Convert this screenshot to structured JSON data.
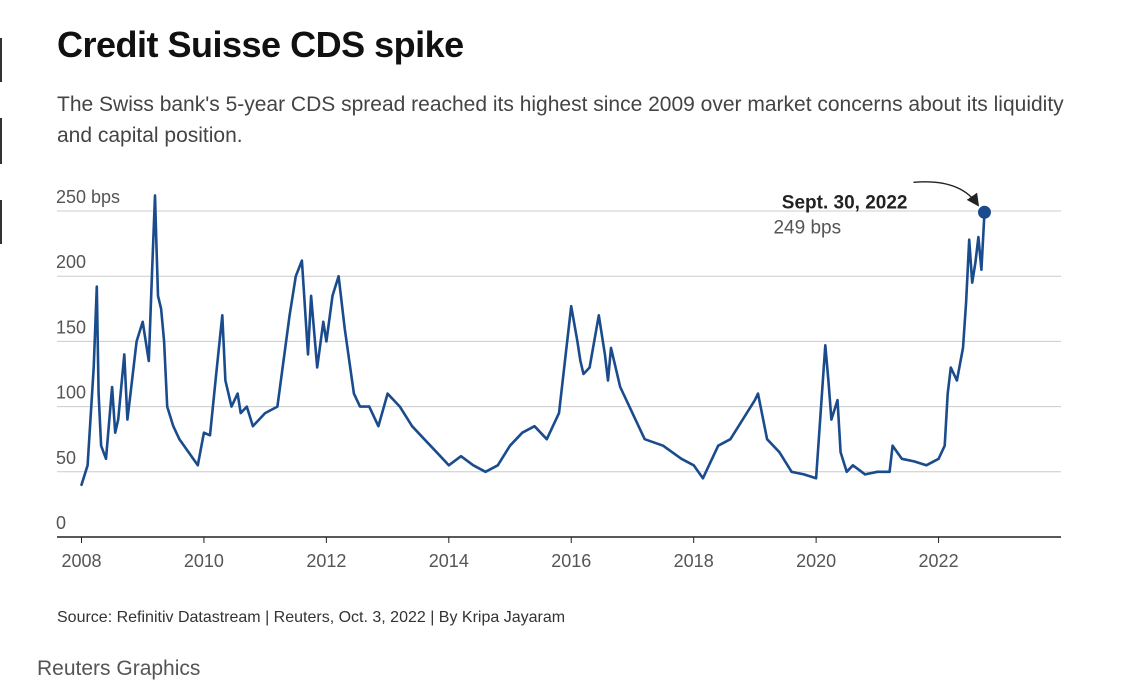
{
  "header": {
    "title": "Credit Suisse CDS spike",
    "subtitle": "The Swiss bank's 5-year CDS spread reached its highest since 2009 over market concerns about its liquidity and capital position."
  },
  "footer": {
    "source": "Source: Refinitiv Datastream | Reuters, Oct. 3, 2022 | By Kripa Jayaram",
    "brand": "Reuters Graphics"
  },
  "colors": {
    "line": "#1a4b8c",
    "grid": "#cccccc",
    "axis": "#222222"
  },
  "chart_data": {
    "type": "line",
    "title": "Credit Suisse CDS spike",
    "xlabel": "",
    "ylabel": "",
    "xlim": [
      2007.6,
      2024.0
    ],
    "ylim": [
      0,
      250
    ],
    "x_ticks": [
      2008,
      2010,
      2012,
      2014,
      2016,
      2018,
      2020,
      2022
    ],
    "x_tick_labels": [
      "2008",
      "2010",
      "2012",
      "2014",
      "2016",
      "2018",
      "2020",
      "2022"
    ],
    "y_ticks": [
      0,
      50,
      100,
      150,
      200,
      250
    ],
    "y_tick_labels": [
      "0",
      "50",
      "100",
      "150",
      "200",
      "250 bps"
    ],
    "grid": "horizontal",
    "series": [
      {
        "x": [
          2008.0,
          2008.1,
          2008.2,
          2008.25,
          2008.28,
          2008.32,
          2008.4,
          2008.5,
          2008.55,
          2008.6,
          2008.7,
          2008.75,
          2008.8,
          2008.9,
          2009.0,
          2009.1,
          2009.15,
          2009.2,
          2009.22,
          2009.25,
          2009.3,
          2009.35,
          2009.4,
          2009.5,
          2009.6,
          2009.75,
          2009.9,
          2010.0,
          2010.1,
          2010.2,
          2010.3,
          2010.35,
          2010.45,
          2010.55,
          2010.6,
          2010.7,
          2010.8,
          2011.0,
          2011.2,
          2011.4,
          2011.5,
          2011.6,
          2011.7,
          2011.75,
          2011.85,
          2011.95,
          2012.0,
          2012.1,
          2012.2,
          2012.3,
          2012.45,
          2012.55,
          2012.7,
          2012.85,
          2013.0,
          2013.2,
          2013.4,
          2013.6,
          2013.8,
          2014.0,
          2014.2,
          2014.4,
          2014.6,
          2014.8,
          2015.0,
          2015.2,
          2015.4,
          2015.6,
          2015.8,
          2016.0,
          2016.1,
          2016.15,
          2016.2,
          2016.3,
          2016.45,
          2016.55,
          2016.6,
          2016.65,
          2016.8,
          2016.95,
          2017.2,
          2017.5,
          2017.8,
          2018.0,
          2018.15,
          2018.4,
          2018.6,
          2018.8,
          2019.0,
          2019.05,
          2019.2,
          2019.4,
          2019.6,
          2019.8,
          2020.0,
          2020.15,
          2020.2,
          2020.25,
          2020.35,
          2020.4,
          2020.5,
          2020.6,
          2020.8,
          2021.0,
          2021.2,
          2021.25,
          2021.4,
          2021.6,
          2021.8,
          2022.0,
          2022.1,
          2022.15,
          2022.2,
          2022.3,
          2022.4,
          2022.45,
          2022.5,
          2022.55,
          2022.6,
          2022.65,
          2022.7,
          2022.75
        ],
        "values": [
          40,
          55,
          130,
          192,
          110,
          70,
          60,
          115,
          80,
          90,
          140,
          90,
          110,
          150,
          165,
          135,
          200,
          262,
          230,
          185,
          175,
          150,
          100,
          85,
          75,
          65,
          55,
          80,
          78,
          125,
          170,
          120,
          100,
          110,
          95,
          100,
          85,
          95,
          100,
          170,
          200,
          212,
          140,
          185,
          130,
          165,
          150,
          185,
          200,
          160,
          110,
          100,
          100,
          85,
          110,
          100,
          85,
          75,
          65,
          55,
          62,
          55,
          50,
          55,
          70,
          80,
          85,
          75,
          95,
          177,
          150,
          135,
          125,
          130,
          170,
          140,
          120,
          145,
          115,
          100,
          75,
          70,
          60,
          55,
          45,
          70,
          75,
          90,
          105,
          110,
          75,
          65,
          50,
          48,
          45,
          147,
          120,
          90,
          105,
          65,
          50,
          55,
          48,
          50,
          50,
          70,
          60,
          58,
          55,
          60,
          70,
          110,
          130,
          120,
          145,
          180,
          228,
          195,
          210,
          230,
          205,
          249
        ]
      }
    ],
    "annotation": {
      "date": "Sept. 30, 2022",
      "value_label": "249 bps",
      "x": 2022.75,
      "y": 249
    }
  }
}
